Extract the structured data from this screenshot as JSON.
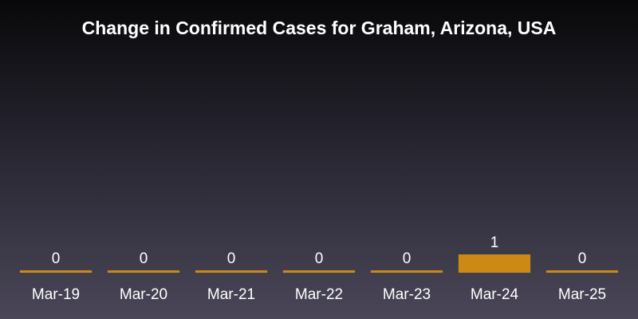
{
  "chart_data": {
    "type": "bar",
    "title": "Change in Confirmed Cases for Graham, Arizona, USA",
    "xlabel": "",
    "ylabel": "",
    "categories": [
      "Mar-19",
      "Mar-20",
      "Mar-21",
      "Mar-22",
      "Mar-23",
      "Mar-24",
      "Mar-25"
    ],
    "values": [
      0,
      0,
      0,
      0,
      0,
      1,
      0
    ],
    "data_labels": [
      "0",
      "0",
      "0",
      "0",
      "0",
      "1",
      "0"
    ],
    "ylim": [
      0,
      12
    ],
    "grid": false,
    "legend": "none",
    "bar_color": "#cc8a14",
    "background_top": "#08080a",
    "background_bottom": "#4a4658",
    "text_color": "#ffffff"
  }
}
